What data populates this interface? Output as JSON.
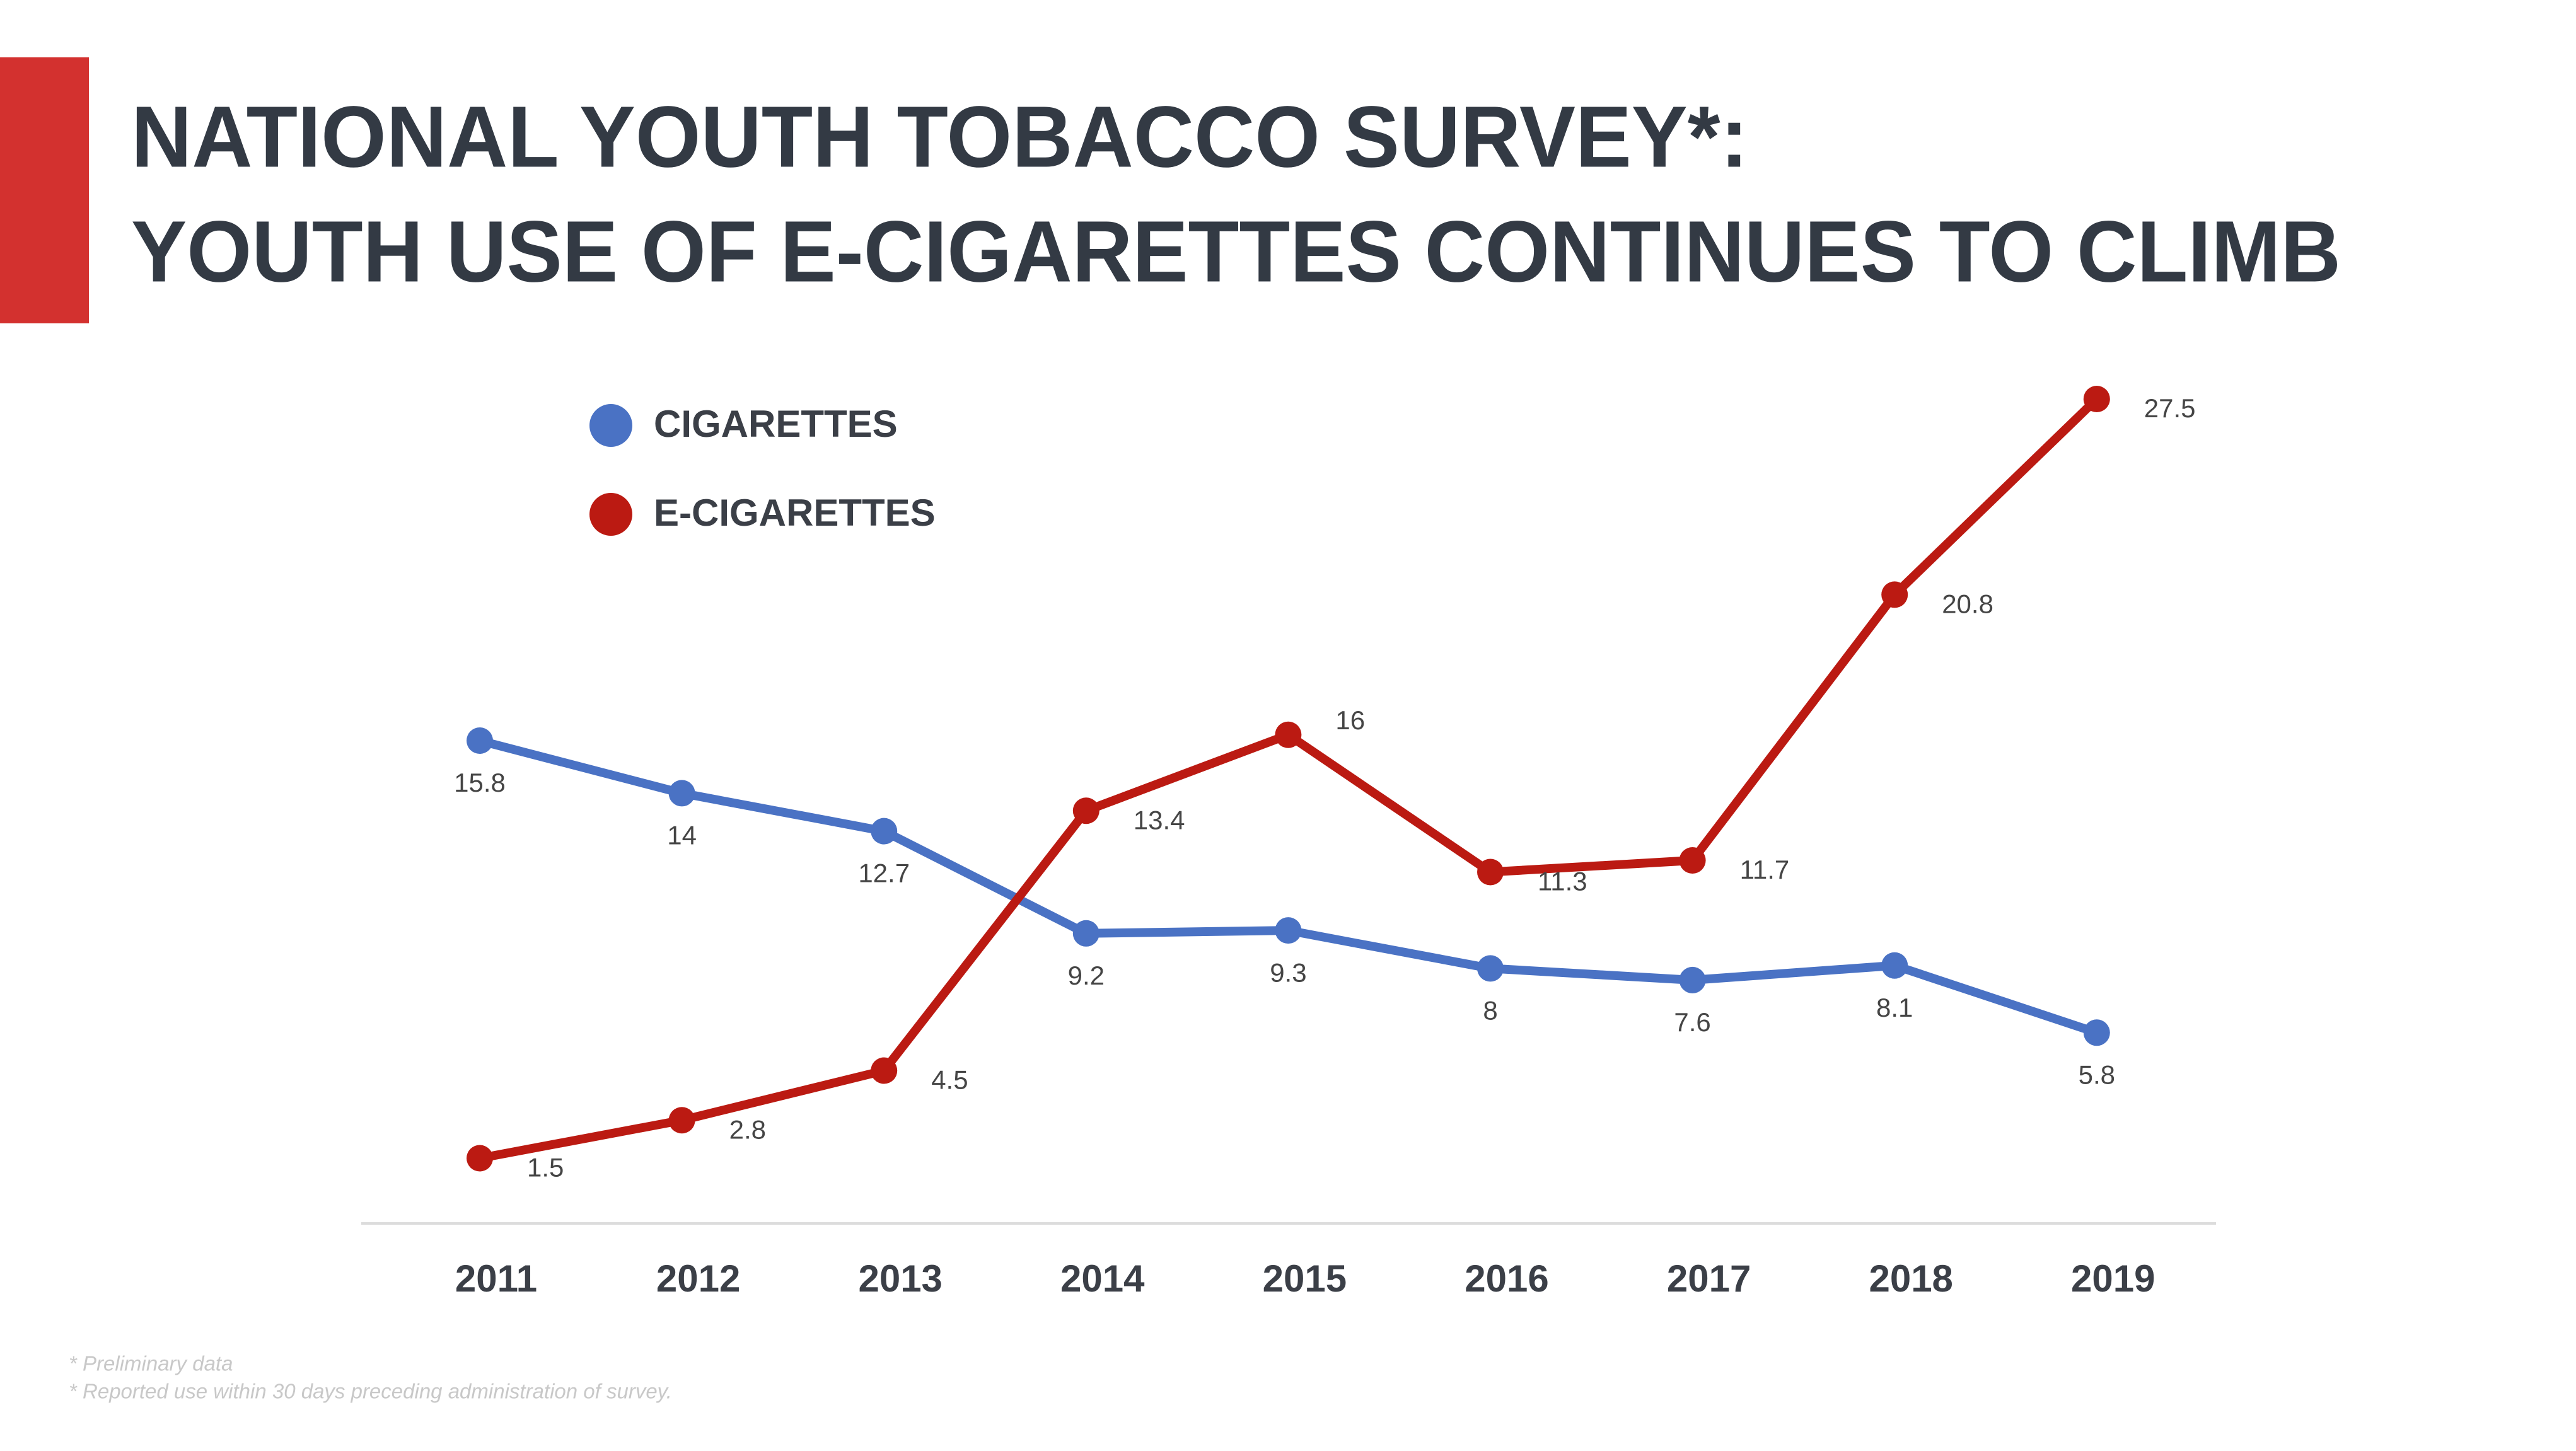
{
  "chart_data": {
    "type": "line",
    "title_lines": [
      "NATIONAL YOUTH TOBACCO SURVEY*:",
      "YOUTH USE OF E-CIGARETTES CONTINUES TO CLIMB"
    ],
    "categories": [
      "2011",
      "2012",
      "2013",
      "2014",
      "2015",
      "2016",
      "2017",
      "2018",
      "2019"
    ],
    "series": [
      {
        "name": "CIGARETTES",
        "color": "#4a72c4",
        "values": [
          15.8,
          14,
          12.7,
          9.2,
          9.3,
          8,
          7.6,
          8.1,
          5.8
        ]
      },
      {
        "name": "E-CIGARETTES",
        "color": "#bb1a12",
        "values": [
          1.5,
          2.8,
          4.5,
          13.4,
          16,
          11.3,
          11.7,
          20.8,
          27.5
        ]
      }
    ],
    "footnotes": [
      "* Preliminary data",
      "* Reported use within 30 days preceding administration of survey."
    ]
  }
}
